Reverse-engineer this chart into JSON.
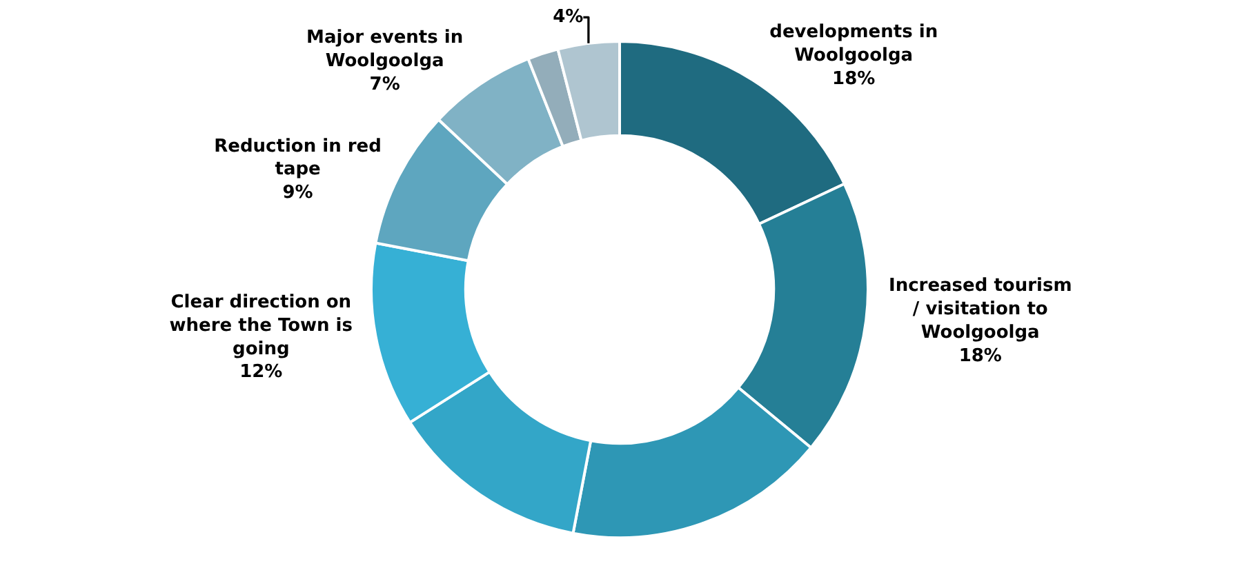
{
  "chart_data": {
    "type": "donut",
    "categories": [
      "developments in Woolgoolga",
      "Increased tourism / visitation to Woolgoolga",
      null,
      null,
      "Clear direction on where the Town is going",
      "Reduction in red tape",
      "Major events in Woolgoolga",
      null,
      null
    ],
    "values": [
      18,
      18,
      17,
      13,
      12,
      9,
      7,
      2,
      4
    ],
    "value_labels": [
      "18%",
      "18%",
      null,
      null,
      "12%",
      "9%",
      "7%",
      null,
      "4%"
    ],
    "colors": [
      "#1f6b80",
      "#257f96",
      "#2e97b5",
      "#33a6c8",
      "#36b0d5",
      "#5ea6bf",
      "#80b2c5",
      "#93adba",
      "#afc5d0"
    ],
    "legend": false
  }
}
